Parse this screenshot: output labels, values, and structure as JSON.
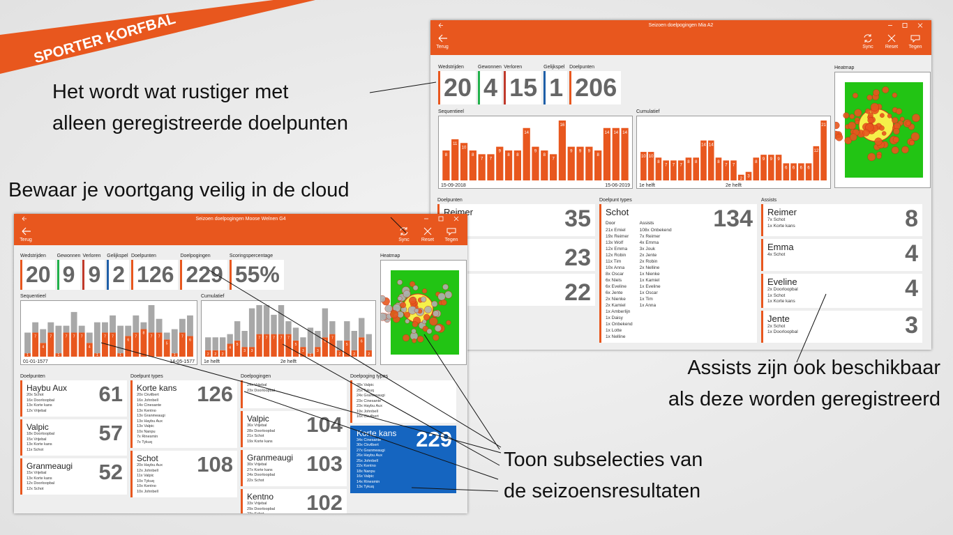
{
  "banner": "SPORTER KORFBAL",
  "captions": {
    "quieter": [
      "Het wordt wat rustiger met",
      "alleen geregistreerde doelpunten"
    ],
    "cloud": [
      "Bewaar je voortgang veilig in de cloud"
    ],
    "assists": [
      "Assists zijn ook beschikbaar",
      "als deze worden geregistreerd"
    ],
    "subselections": [
      "Toon subselecties van",
      "de seizoensresultaten"
    ]
  },
  "windows": [
    {
      "title": "Seizoen doelpogingen Mia A2",
      "back": "Terug",
      "buttons": [
        "Sync",
        "Reset",
        "Tegen"
      ],
      "stats": [
        {
          "label": "Wedstrijden",
          "value": 20,
          "color": "#e8571e"
        },
        {
          "label": "Gewonnen",
          "value": 4,
          "color": "#22b14c"
        },
        {
          "label": "Verloren",
          "value": 15,
          "color": "#c0392b"
        },
        {
          "label": "Gelijkspel",
          "value": 1,
          "color": "#1f5fa8"
        },
        {
          "label": "Doelpunten",
          "value": 206,
          "color": "#e8571e"
        }
      ],
      "sequential": {
        "label": "Sequentieel",
        "start": "15-09-2018",
        "end": "15-06-2019",
        "hits": [
          8,
          11,
          10,
          8,
          7,
          7,
          9,
          8,
          8,
          14,
          9,
          8,
          7,
          16,
          9,
          9,
          9,
          8,
          14,
          14,
          14
        ]
      },
      "cumulative": {
        "label": "Cumulatief",
        "start": "1e helft",
        "end": "2e helft",
        "hits": [
          10,
          10,
          8,
          7,
          7,
          7,
          8,
          8,
          14,
          14,
          8,
          7,
          7,
          2,
          3,
          8,
          9,
          9,
          9,
          6,
          6,
          6,
          6,
          12,
          21
        ]
      },
      "heatmap": "Heatmap",
      "columns": [
        {
          "label": "Doelpunten",
          "cards": [
            {
              "name": "Reimer",
              "value": 35
            },
            {
              "value": 23
            },
            {
              "value": 22
            }
          ]
        },
        {
          "label": "Doelpunt types",
          "cards": [
            {
              "name": "Schot",
              "value": 134,
              "groups": [
                {
                  "header": "Door",
                  "lines": [
                    "21x Emiel",
                    "19x Reimer",
                    "13x Wolf",
                    "12x Emma",
                    "12x Robin",
                    "11x Tim",
                    "10x Anna",
                    "8x Oscar",
                    "6x Niels",
                    "6x Eveline",
                    "6x Jente",
                    "2x Nienke",
                    "2x Kamiel",
                    "1x Amberlijn",
                    "1x Daisy",
                    "1x Onbekend",
                    "1x Lotte",
                    "1x Nelline"
                  ]
                },
                {
                  "header": "Assists",
                  "lines": [
                    "108x Onbekend",
                    "7x Reimer",
                    "4x Emma",
                    "3x Jouk",
                    "2x Jente",
                    "2x Robin",
                    "2x Nelline",
                    "1x Nienke",
                    "1x Kamiel",
                    "1x Eveline",
                    "1x Oscar",
                    "1x Tim",
                    "1x Anna"
                  ]
                }
              ]
            }
          ]
        },
        {
          "label": "Assists",
          "cards": [
            {
              "name": "Reimer",
              "value": 8,
              "lines": [
                "7x Schot",
                "1x Korte kans"
              ]
            },
            {
              "name": "Emma",
              "value": 4,
              "lines": [
                "4x Schot"
              ]
            },
            {
              "name": "Eveline",
              "value": 4,
              "lines": [
                "2x Doorloopbal",
                "1x Schot",
                "1x Korte kans"
              ]
            },
            {
              "name": "Jente",
              "value": 3,
              "lines": [
                "2x Schot",
                "1x Doorloopbal"
              ]
            }
          ]
        }
      ]
    },
    {
      "title": "Seizoen doelpogingen Moose Welnen G4",
      "back": "Terug",
      "buttons": [
        "Sync",
        "Reset",
        "Tegen"
      ],
      "stats": [
        {
          "label": "Wedstrijden",
          "value": 20,
          "color": "#e8571e"
        },
        {
          "label": "Gewonnen",
          "value": 9,
          "color": "#22b14c"
        },
        {
          "label": "Verloren",
          "value": 9,
          "color": "#c0392b"
        },
        {
          "label": "Gelijkspel",
          "value": 2,
          "color": "#1f5fa8"
        },
        {
          "label": "Doelpunten",
          "value": 126,
          "color": "#e8571e"
        },
        {
          "label": "Doelpogingen",
          "value": 229,
          "color": "#e8571e"
        },
        {
          "label": "Scoringspercentage",
          "value": "55%",
          "color": "#e8571e"
        }
      ],
      "sequential": {
        "label": "Sequentieel",
        "start": "01-01-1577",
        "end": "14-05-1577",
        "hits": [
          1,
          7,
          4,
          7,
          1,
          7,
          7,
          7,
          4,
          1,
          7,
          7,
          1,
          6,
          7,
          8,
          7,
          7,
          5,
          1,
          7,
          6
        ],
        "misses": [
          6,
          3,
          4,
          3,
          8,
          2,
          6,
          2,
          3,
          9,
          3,
          5,
          8,
          3,
          5,
          2,
          8,
          4,
          2,
          7,
          4,
          6
        ]
      },
      "cumulative": {
        "label": "Cumulatief",
        "start": "1e helft",
        "end": "2e helft",
        "hits": [
          2,
          2,
          2,
          4,
          5,
          3,
          3,
          7,
          7,
          7,
          7,
          7,
          5,
          3,
          1,
          3,
          6,
          7,
          2,
          5,
          2,
          6,
          2
        ],
        "misses": [
          4,
          4,
          4,
          3,
          6,
          5,
          12,
          9,
          9,
          6,
          9,
          4,
          4,
          3,
          8,
          5,
          9,
          4,
          3,
          6,
          6,
          6,
          5
        ]
      },
      "heatmap": "Heatmap",
      "columns": [
        {
          "label": "Doelpunten",
          "cards": [
            {
              "name": "Haybu Aux",
              "value": 61,
              "lines": [
                "20x Schot",
                "16x Doorloopbal",
                "13x Korte kans",
                "12x Vrijebal"
              ]
            },
            {
              "name": "Valpic",
              "value": 57,
              "lines": [
                "18x Doorloopbal",
                "15x Vrijebal",
                "13x Korte kans",
                "11x Schot"
              ]
            },
            {
              "name": "Granmeaugi",
              "value": 52,
              "lines": [
                "15x Vrijebal",
                "13x Korte kans",
                "12x Doorloopbal",
                "12x Schot"
              ]
            }
          ]
        },
        {
          "label": "Doelpunt types",
          "cards": [
            {
              "name": "Korte kans",
              "value": 126,
              "lines": [
                "20x Ckvilbert",
                "16x Johnbell",
                "14x Cinesante",
                "13x Kentno",
                "13x Granmeaugi",
                "13x Haybu Aux",
                "13x Valpic",
                "10x Nanpu",
                "7x Rinesmin",
                "7x Tykuq"
              ]
            },
            {
              "name": "Schot",
              "value": 108,
              "lines": [
                "20x Haybu Aux",
                "12x Johnbell",
                "11x Valpic",
                "10x Tykuq",
                "10x Kentno",
                "10x Johnbell"
              ]
            }
          ]
        },
        {
          "label": "Doelpogingen",
          "cards": [
            {
              "lines": [
                "24x Vrijebal",
                "23x Doorloopbal"
              ]
            },
            {
              "name": "Valpic",
              "value": 104,
              "lines": [
                "36x Vrijebal",
                "28x Doorloopbal",
                "21x Schot",
                "19x Korte kans"
              ]
            },
            {
              "name": "Granmeaugi",
              "value": 103,
              "lines": [
                "30x Vrijebal",
                "27x Korte kans",
                "24x Doorloopbal",
                "22x Schot"
              ]
            },
            {
              "name": "Kentno",
              "value": 102,
              "lines": [
                "33x Vrijebal",
                "29x Doorloopbal",
                "23x Schot"
              ]
            }
          ]
        },
        {
          "label": "Doelpoging types",
          "cards": [
            {
              "lines": [
                "28x Valpic",
                "25x Tykuq",
                "24x Granmeaugi",
                "23x Cinesante",
                "23x Haybu Aux",
                "19x Johnbell",
                "16x Ckvilbert"
              ]
            },
            {
              "name": "Korte kans",
              "value": 229,
              "selected": true,
              "lines": [
                "34x Cinesante",
                "30x Ckvilbert",
                "27x Granmeaugi",
                "26x Haybu Aux",
                "25x Johnbell",
                "22x Kentno",
                "18x Nanpu",
                "16x Valpic",
                "14x Rinesmin",
                "13x Tykuq"
              ]
            }
          ]
        }
      ]
    }
  ]
}
